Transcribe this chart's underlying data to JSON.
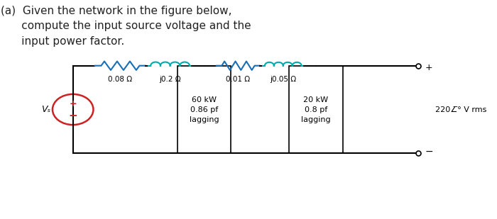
{
  "title_text": "(a)  Given the network in the figure below,\n      compute the input source voltage and the\n      input power factor.",
  "bg_color": "#ffffff",
  "wire_color": "#000000",
  "resistor_color": "#1a6eb5",
  "inductor_color": "#00aaaa",
  "source_color": "#cc2222",
  "load_box_color": "#000000",
  "label_r1": "0.08 Ω",
  "label_l1": "j0.2 Ω",
  "label_r2": "0.01 Ω",
  "label_l2": "j0.05 Ω",
  "label_load1": "60 kW\n0.86 pf\nlagging",
  "label_load2": "20 kW\n0.8 pf\nlagging",
  "label_source": "220∠̅° V rms",
  "label_vs": "Vₛ",
  "fig_width": 7.0,
  "fig_height": 3.09,
  "dpi": 100
}
